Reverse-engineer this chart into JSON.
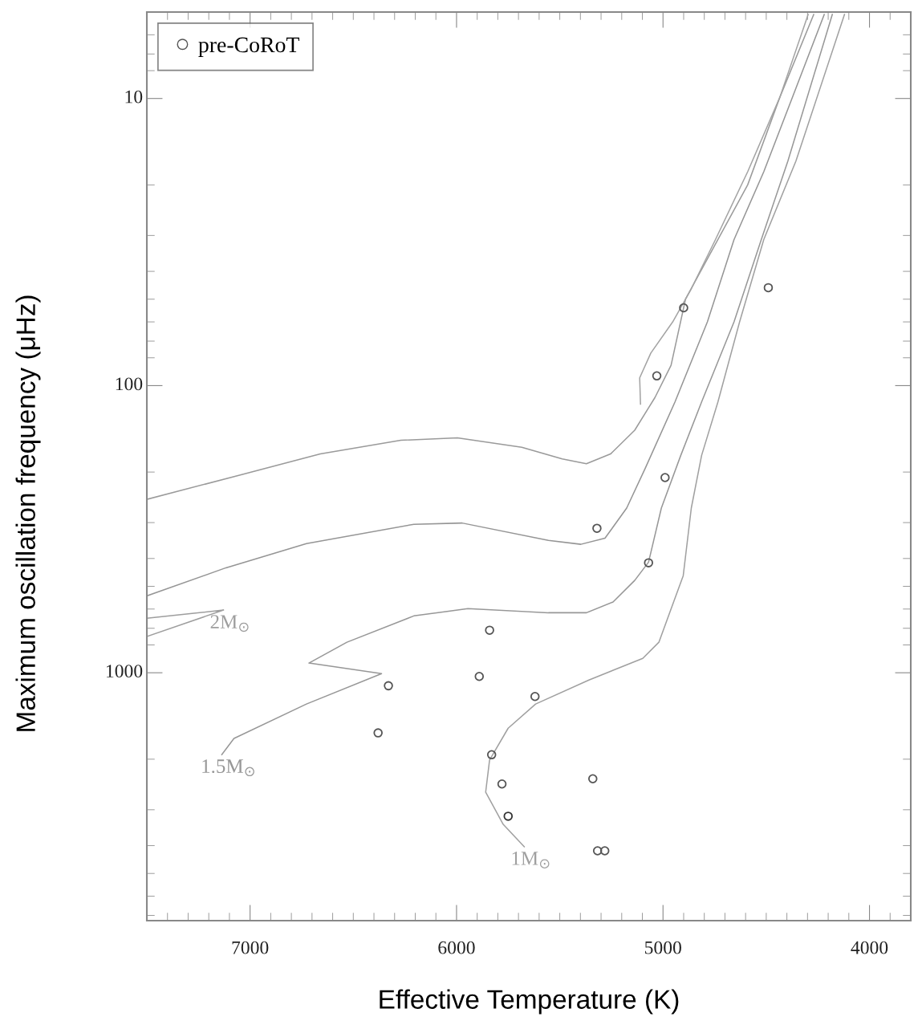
{
  "chart_data": {
    "type": "line",
    "xlabel": "Effective Temperature (K)",
    "ylabel": "Maximum oscillation frequency (μHz)",
    "xlim": [
      7500,
      3800
    ],
    "xticks": [
      7000,
      6000,
      5000,
      4000
    ],
    "ylim": [
      7300,
      5
    ],
    "yticks": [
      10,
      100,
      1000
    ],
    "log": "y",
    "grid": false,
    "legend": "top left",
    "series": [
      {
        "color": "#9a9a9a",
        "line_style": "solid",
        "marker": "none",
        "x": [
          4270,
          4434,
          4590,
          4734,
          4891,
          4961,
          5039,
          5137,
          5254,
          5371,
          5488,
          5684,
          5996,
          6270,
          6660,
          7051,
          7500
        ],
        "values": [
          5.1,
          9.9,
          20,
          31,
          50,
          85,
          110,
          143,
          173,
          187,
          180,
          164,
          152,
          155,
          173,
          205,
          249
        ]
      },
      {
        "color": "#a3a3a3",
        "line_style": "solid",
        "marker": "none",
        "x": [
          4297,
          4434,
          4590,
          4746,
          4863,
          4953,
          5059,
          5113,
          5109
        ],
        "values": [
          5.1,
          9.9,
          18,
          31,
          46,
          60,
          77,
          94,
          116
        ]
      },
      {
        "color": "#959595",
        "line_style": "solid",
        "marker": "none",
        "x": [
          4219,
          4356,
          4512,
          4656,
          4785,
          4942,
          5086,
          5176,
          5281,
          5398,
          5555,
          5973,
          6207,
          6727,
          7117,
          7500
        ],
        "values": [
          5.1,
          9.2,
          18,
          31,
          60,
          114,
          194,
          267,
          340,
          357,
          346,
          301,
          304,
          355,
          431,
          540
        ]
      },
      {
        "name": "2M$_{⊙}$",
        "color": "#9e9e9e",
        "line_style": "solid",
        "marker": "none",
        "x": [
          7500,
          7129,
          7500,
          7129
        ],
        "values": [
          748,
          605,
          646,
          605
        ]
      },
      {
        "name": "1.5M$_{⊙}$",
        "color": "#979797",
        "line_style": "solid",
        "marker": "none",
        "x": [
          4180,
          4395,
          4524,
          4656,
          4813,
          4914,
          5008,
          5070,
          5137,
          5242,
          5371,
          5555,
          5945,
          6207,
          6531,
          6715,
          6363,
          6727,
          7078,
          7137
        ],
        "values": [
          5.1,
          16.5,
          31,
          60,
          114,
          175,
          267,
          412,
          477,
          567,
          618,
          618,
          598,
          634,
          783,
          925,
          1007,
          1285,
          1694,
          1927
        ]
      },
      {
        "name": "1M$_{⊙}$",
        "color": "#a0a0a0",
        "line_style": "solid",
        "marker": "none",
        "x": [
          4121,
          4356,
          4512,
          4629,
          4734,
          4813,
          4863,
          4902,
          5020,
          5098,
          5359,
          5617,
          5750,
          5840,
          5859,
          5774,
          5672
        ],
        "values": [
          5.1,
          16.5,
          31,
          60,
          114,
          175,
          267,
          459,
          783,
          891,
          1060,
          1285,
          1560,
          2014,
          2606,
          3373,
          4036
        ]
      },
      {
        "type": "scatter",
        "name": "pre-CoRoT",
        "color": "#555555",
        "marker": "circle",
        "x": [
          4490,
          4900,
          5030,
          4990,
          5320,
          5070,
          5840,
          5890,
          6330,
          5620,
          6380,
          5830,
          5780,
          5340,
          5317,
          5282
        ],
        "values": [
          45.6,
          53.6,
          92.5,
          209,
          314,
          414,
          711,
          1030,
          1110,
          1210,
          1620,
          1930,
          2440,
          2340,
          4170,
          4170
        ]
      },
      {
        "type": "scatter",
        "color": "#333333",
        "marker": "circle",
        "x": [
          5750
        ],
        "values": [
          3160
        ]
      }
    ]
  }
}
